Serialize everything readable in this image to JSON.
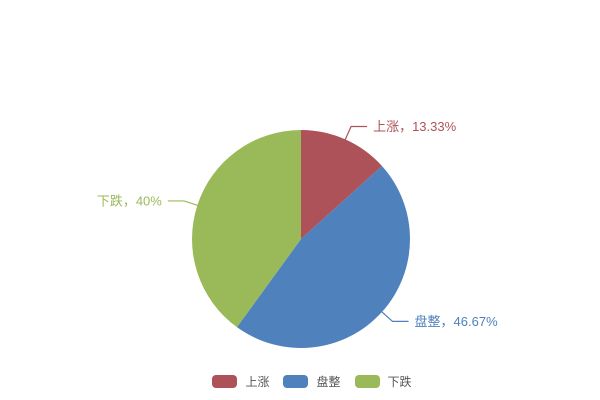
{
  "page": {
    "background": "#ffffff"
  },
  "legend": {
    "position": "bottom",
    "text_color": "#555555"
  },
  "chart_data": {
    "type": "pie",
    "title": "",
    "categories": [
      "上涨",
      "盘整",
      "下跌"
    ],
    "values": [
      13.33,
      46.67,
      40
    ],
    "slices": [
      {
        "name": "上涨",
        "value": 13.33,
        "label": "上涨，13.33%",
        "color": "#AE5259"
      },
      {
        "name": "盘整",
        "value": 46.67,
        "label": "盘整，46.67%",
        "color": "#4F81BD"
      },
      {
        "name": "下跌",
        "value": 40,
        "label": "下跌，40%",
        "color": "#9ABA59"
      }
    ],
    "start_angle": "top",
    "direction": "clockwise",
    "labels": "outside-with-leader-lines",
    "legend_position": "bottom",
    "legend_entries": [
      "上涨",
      "盘整",
      "下跌"
    ]
  }
}
